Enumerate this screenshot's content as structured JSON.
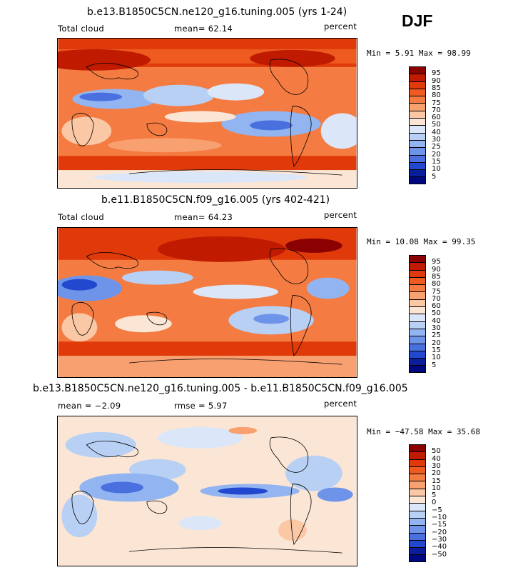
{
  "season_label": "DJF",
  "chart_data": [
    {
      "type": "heatmap",
      "title": "b.e13.B1850C5CN.ne120_g16.tuning.005 (yrs 1-24)",
      "variable": "Total cloud",
      "units": "percent",
      "mean_text": "mean=  62.14",
      "minmax_text": "Min =   5.91 Max =  98.99",
      "min": 5.91,
      "max": 98.99,
      "mean": 62.14,
      "levels": [
        "95",
        "90",
        "85",
        "80",
        "75",
        "70",
        "60",
        "50",
        "40",
        "30",
        "25",
        "20",
        "15",
        "10",
        "5"
      ],
      "level_colors": [
        "#8b0000",
        "#c01a00",
        "#e03a0a",
        "#ee5a20",
        "#f47c42",
        "#f8a070",
        "#fbc8a6",
        "#fbe6d6",
        "#dbe6f8",
        "#b8d0f4",
        "#92b4f0",
        "#6e94ea",
        "#4a70e0",
        "#2248d0",
        "#0a1e9c",
        "#000880"
      ]
    },
    {
      "type": "heatmap",
      "title": "b.e11.B1850C5CN.f09_g16.005 (yrs 402-421)",
      "variable": "Total cloud",
      "units": "percent",
      "mean_text": "mean=  64.23",
      "minmax_text": "Min =  10.08 Max =  99.35",
      "min": 10.08,
      "max": 99.35,
      "mean": 64.23,
      "levels": [
        "95",
        "90",
        "85",
        "80",
        "75",
        "70",
        "60",
        "50",
        "40",
        "30",
        "25",
        "20",
        "15",
        "10",
        "5"
      ],
      "level_colors": [
        "#8b0000",
        "#c01a00",
        "#e03a0a",
        "#ee5a20",
        "#f47c42",
        "#f8a070",
        "#fbc8a6",
        "#fbe6d6",
        "#dbe6f8",
        "#b8d0f4",
        "#92b4f0",
        "#6e94ea",
        "#4a70e0",
        "#2248d0",
        "#0a1e9c",
        "#000880"
      ]
    },
    {
      "type": "heatmap",
      "title": "b.e13.B1850C5CN.ne120_g16.tuning.005 - b.e11.B1850C5CN.f09_g16.005",
      "units": "percent",
      "mean_text": "mean =  −2.09",
      "rmse_text": "rmse =   5.97",
      "minmax_text": "Min = −47.58 Max =  35.68",
      "min": -47.58,
      "max": 35.68,
      "mean": -2.09,
      "rmse": 5.97,
      "levels": [
        "50",
        "40",
        "30",
        "20",
        "15",
        "10",
        "5",
        "0",
        "−5",
        "−10",
        "−15",
        "−20",
        "−30",
        "−40",
        "−50"
      ],
      "level_colors": [
        "#8b0000",
        "#c01a00",
        "#e03a0a",
        "#ee5a20",
        "#f47c42",
        "#f8a070",
        "#fbc8a6",
        "#fbe6d6",
        "#dbe6f8",
        "#b8d0f4",
        "#92b4f0",
        "#6e94ea",
        "#4a70e0",
        "#2248d0",
        "#0a1e9c",
        "#000880"
      ]
    }
  ]
}
